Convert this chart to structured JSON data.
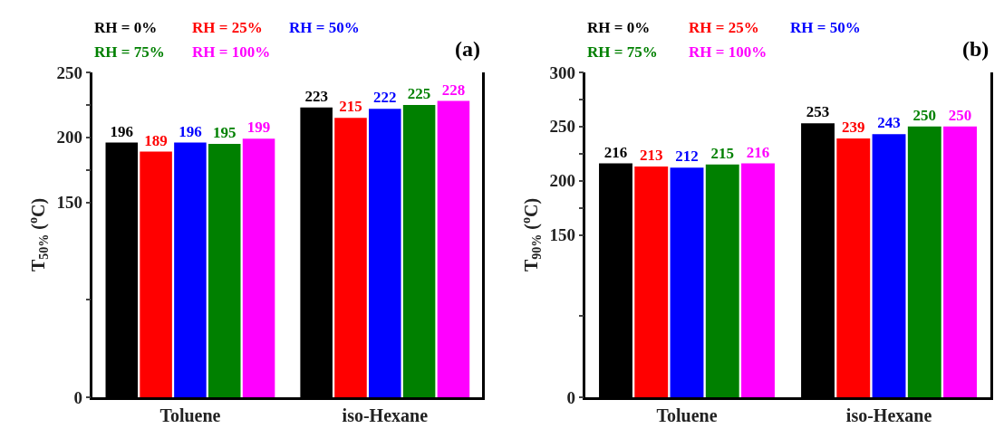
{
  "chart_data": [
    {
      "type": "bar",
      "ylabel": "T$_{50%}$ ($^{o}$C)",
      "annotations": [
        "(a)"
      ],
      "categories": [
        "Toluene",
        "iso-Hexane"
      ],
      "series": [
        {
          "name": "RH = 0%",
          "color": "#000000",
          "values": [
            196,
            223
          ]
        },
        {
          "name": "RH = 25%",
          "color": "#ff0000",
          "values": [
            189,
            215
          ]
        },
        {
          "name": "RH = 50%",
          "color": "#0000ff",
          "values": [
            196,
            222
          ]
        },
        {
          "name": "RH = 75%",
          "color": "#008000",
          "values": [
            195,
            225
          ]
        },
        {
          "name": "RH = 100%",
          "color": "#ff00ff",
          "values": [
            199,
            228
          ]
        }
      ],
      "ylim": [
        0,
        250
      ],
      "yticks": [
        0,
        {
          "value": 75,
          "label": null
        },
        150,
        {
          "value": 175,
          "label": null
        },
        200,
        {
          "value": 225,
          "label": null
        },
        250
      ],
      "data_labels": true,
      "legend": "top"
    },
    {
      "type": "bar",
      "ylabel": "T$_{90%}$ ($^{o}$C)",
      "annotations": [
        "(b)"
      ],
      "categories": [
        "Toluene",
        "iso-Hexane"
      ],
      "series": [
        {
          "name": "RH = 0%",
          "color": "#000000",
          "values": [
            216,
            253
          ]
        },
        {
          "name": "RH = 25%",
          "color": "#ff0000",
          "values": [
            213,
            239
          ]
        },
        {
          "name": "RH = 50%",
          "color": "#0000ff",
          "values": [
            212,
            243
          ]
        },
        {
          "name": "RH = 75%",
          "color": "#008000",
          "values": [
            215,
            250
          ]
        },
        {
          "name": "RH = 100%",
          "color": "#ff00ff",
          "values": [
            216,
            250
          ]
        }
      ],
      "ylim": [
        0,
        300
      ],
      "yticks": [
        0,
        {
          "value": 75,
          "label": null
        },
        150,
        {
          "value": 175,
          "label": null
        },
        200,
        {
          "value": 225,
          "label": null
        },
        250,
        {
          "value": 275,
          "label": null
        },
        300
      ],
      "data_labels": true,
      "legend": "top"
    }
  ]
}
